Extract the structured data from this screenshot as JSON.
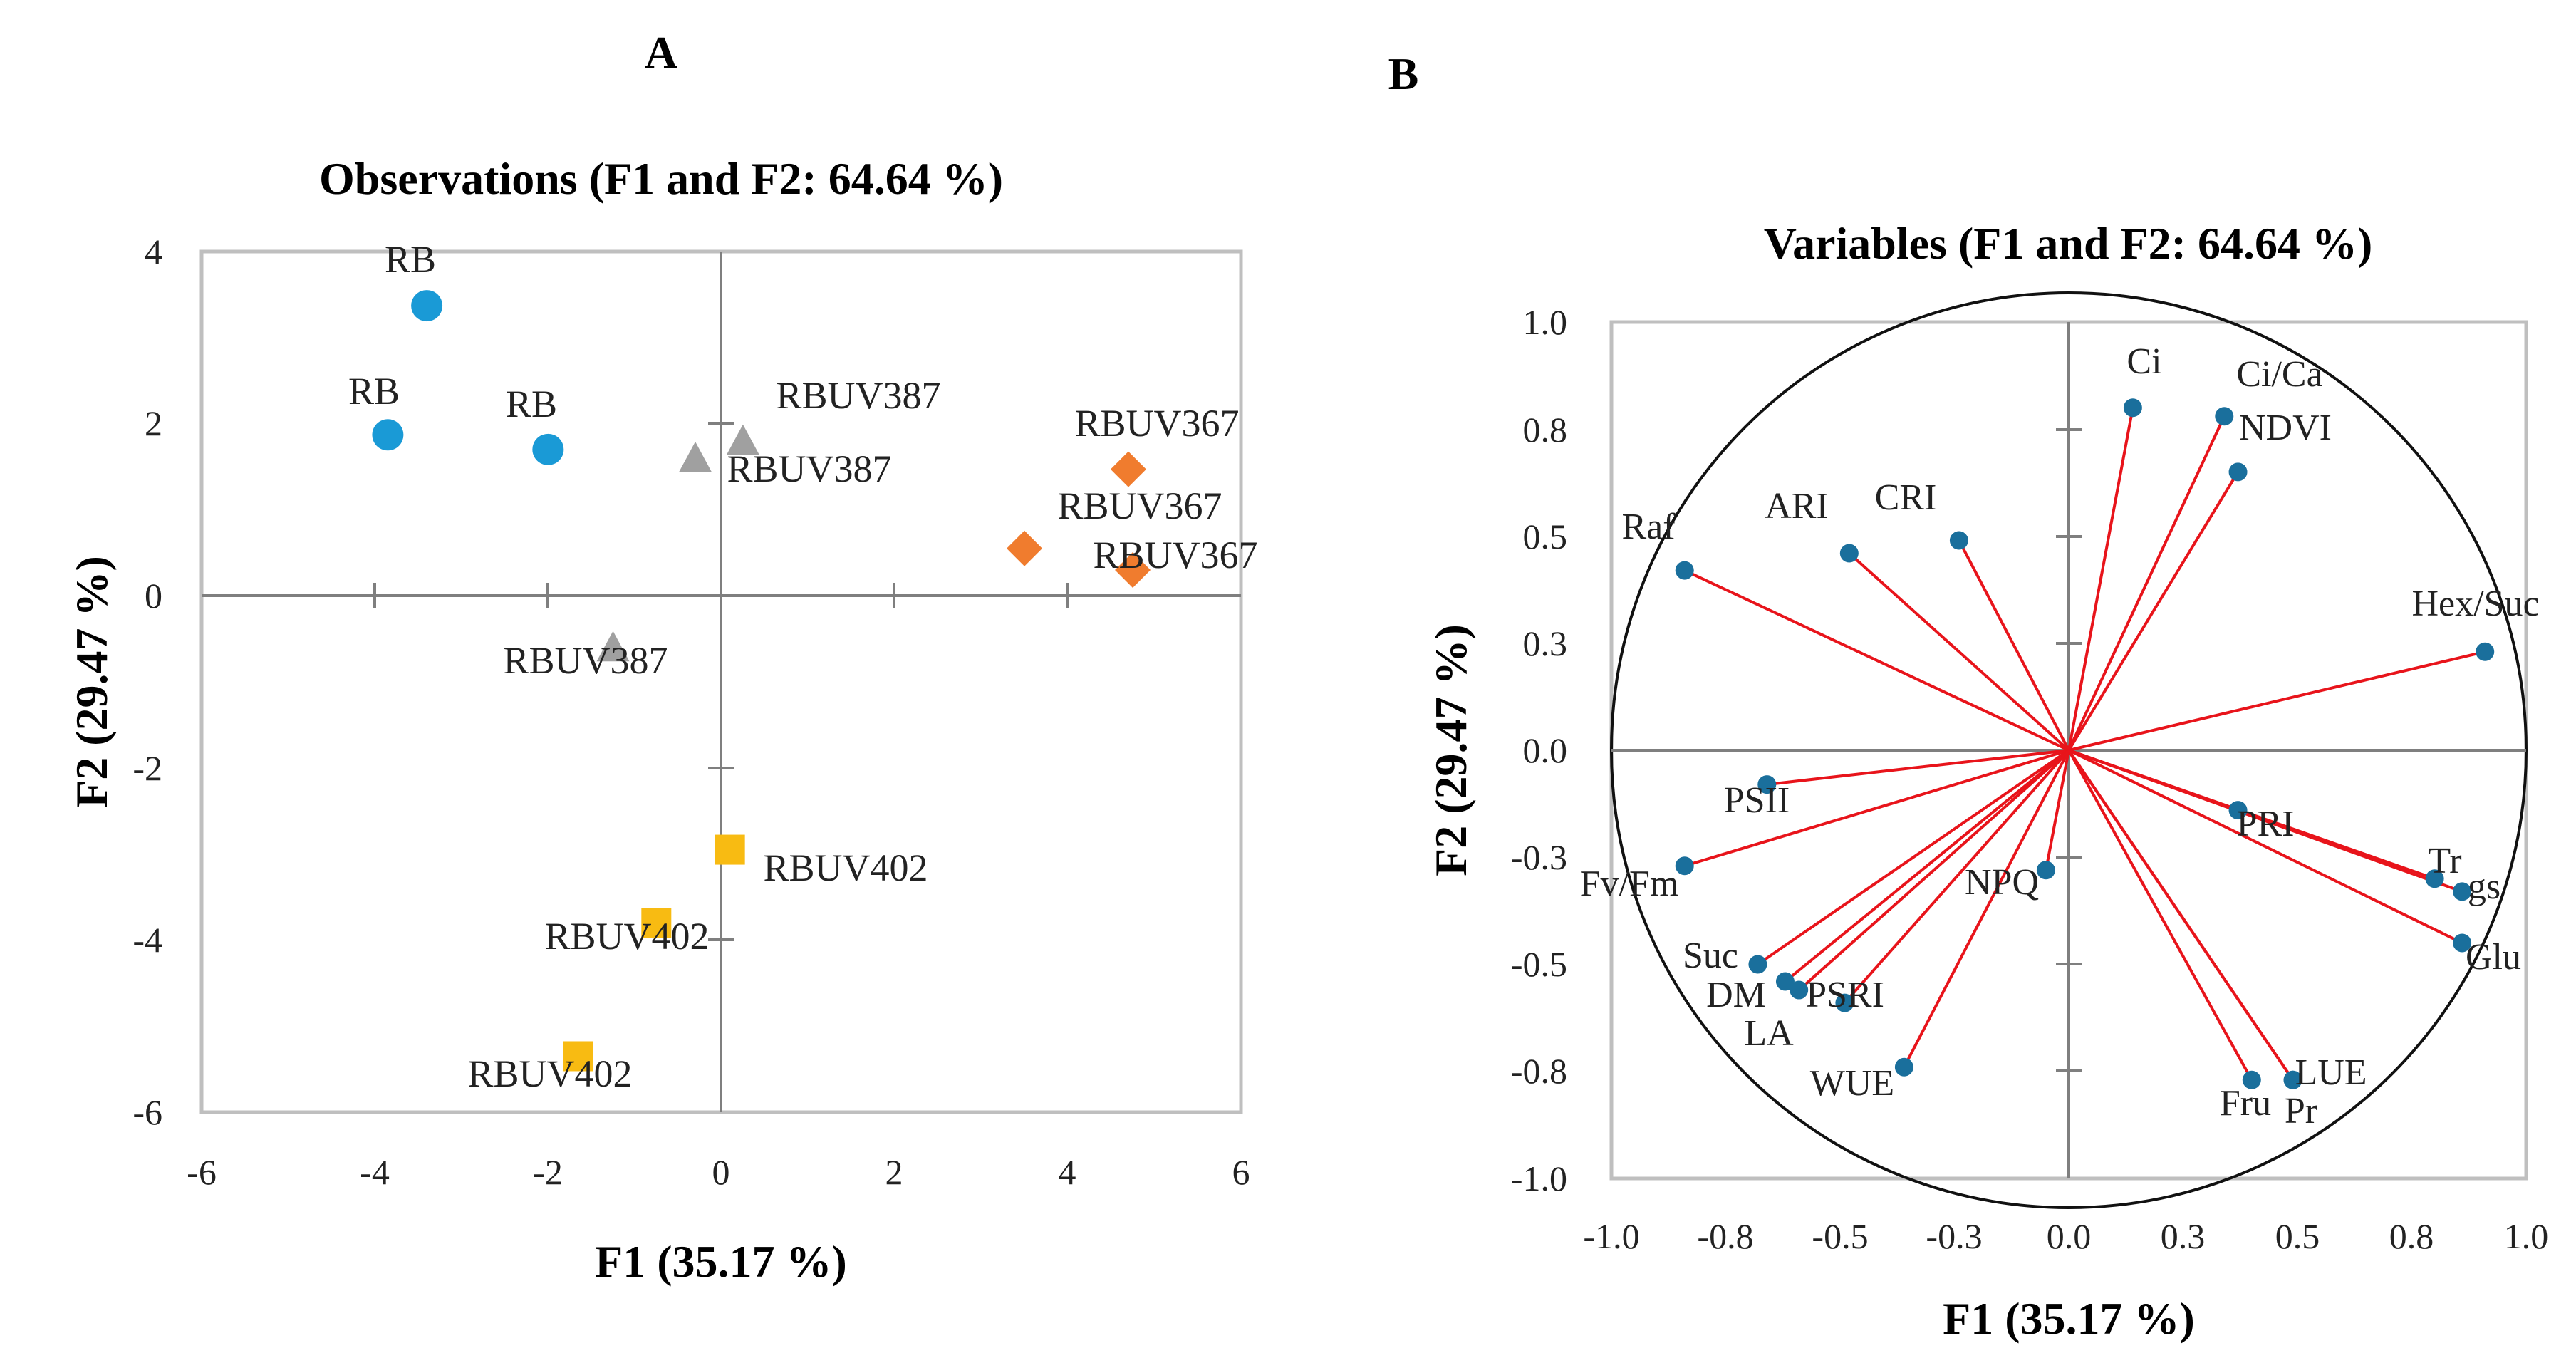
{
  "chart_data": [
    {
      "type": "scatter",
      "panel_label": "A",
      "title": "Observations (F1 and F2: 64.64 %)",
      "xlabel": "F1 (35.17 %)",
      "ylabel": "F2 (29.47 %)",
      "xlim": [
        -6,
        6
      ],
      "ylim": [
        -6,
        4
      ],
      "xticks": [
        "-6",
        "-4",
        "-2",
        "0",
        "2",
        "4",
        "6"
      ],
      "yticks": [
        "4",
        "2",
        "0",
        "-2",
        "-4",
        "-6"
      ],
      "series": [
        {
          "name": "RB",
          "marker": "circle",
          "color": "#1a9ad6",
          "points": [
            {
              "label": "RB",
              "x": -3.4,
              "y": 3.37
            },
            {
              "label": "RB",
              "x": -3.85,
              "y": 1.87
            },
            {
              "label": "RB",
              "x": -2.0,
              "y": 1.7
            }
          ]
        },
        {
          "name": "RBUV387",
          "marker": "triangle",
          "color": "#a0a0a0",
          "points": [
            {
              "label": "RBUV387",
              "x": 0.25,
              "y": 1.8
            },
            {
              "label": "RBUV387",
              "x": -0.3,
              "y": 1.6
            },
            {
              "label": "RBUV387",
              "x": -1.25,
              "y": -0.6
            }
          ]
        },
        {
          "name": "RBUV367",
          "marker": "diamond",
          "color": "#f07c2e",
          "points": [
            {
              "label": "RBUV367",
              "x": 4.7,
              "y": 1.47
            },
            {
              "label": "RBUV367",
              "x": 3.5,
              "y": 0.55
            },
            {
              "label": "RBUV367",
              "x": 4.75,
              "y": 0.3
            }
          ]
        },
        {
          "name": "RBUV402",
          "marker": "square",
          "color": "#f8bb12",
          "points": [
            {
              "label": "RBUV402",
              "x": 0.1,
              "y": -2.95
            },
            {
              "label": "RBUV402",
              "x": -0.75,
              "y": -3.8
            },
            {
              "label": "RBUV402",
              "x": -1.65,
              "y": -5.35
            }
          ]
        }
      ]
    },
    {
      "type": "scatter",
      "panel_label": "B",
      "title": "Variables (F1 and F2: 64.64 %)",
      "xlabel": "F1 (35.17 %)",
      "ylabel": "F2 (29.47 %)",
      "xlim": [
        -1.0,
        1.0
      ],
      "ylim": [
        -1.0,
        1.0
      ],
      "xticks": [
        "-1.0",
        "-0.8",
        "-0.5",
        "-0.3",
        "0.0",
        "0.3",
        "0.5",
        "0.8",
        "1.0"
      ],
      "yticks": [
        "1.0",
        "0.8",
        "0.5",
        "0.3",
        "0.0",
        "-0.3",
        "-0.5",
        "-0.8",
        "-1.0"
      ],
      "vectors": [
        {
          "name": "Ci",
          "x": 0.14,
          "y": 0.8
        },
        {
          "name": "Ci/Ca",
          "x": 0.34,
          "y": 0.78
        },
        {
          "name": "NDVI",
          "x": 0.37,
          "y": 0.65
        },
        {
          "name": "Raf",
          "x": -0.84,
          "y": 0.42
        },
        {
          "name": "ARI",
          "x": -0.48,
          "y": 0.46
        },
        {
          "name": "CRI",
          "x": -0.24,
          "y": 0.49
        },
        {
          "name": "Hex/Suc",
          "x": 0.91,
          "y": 0.23
        },
        {
          "name": "PSII",
          "x": -0.66,
          "y": -0.08
        },
        {
          "name": "Fv/Fm",
          "x": -0.84,
          "y": -0.27
        },
        {
          "name": "NPQ",
          "x": -0.05,
          "y": -0.28
        },
        {
          "name": "PRI",
          "x": 0.37,
          "y": -0.14
        },
        {
          "name": "Tr",
          "x": 0.8,
          "y": -0.3
        },
        {
          "name": "gs",
          "x": 0.86,
          "y": -0.33
        },
        {
          "name": "Glu",
          "x": 0.86,
          "y": -0.45
        },
        {
          "name": "Suc",
          "x": -0.68,
          "y": -0.5
        },
        {
          "name": "DM",
          "x": -0.62,
          "y": -0.54
        },
        {
          "name": "LA",
          "x": -0.59,
          "y": -0.56
        },
        {
          "name": "PSRI",
          "x": -0.49,
          "y": -0.59
        },
        {
          "name": "WUE",
          "x": -0.36,
          "y": -0.74
        },
        {
          "name": "Fru",
          "x": 0.4,
          "y": -0.77
        },
        {
          "name": "LUE",
          "x": 0.49,
          "y": -0.77
        },
        {
          "name": "Pr",
          "x": 0.49,
          "y": -0.77
        }
      ],
      "colors": {
        "arrow": "#e8141b",
        "point": "#1a6f9c",
        "frame": "#bfbfbf",
        "circle": "#111111"
      }
    }
  ]
}
